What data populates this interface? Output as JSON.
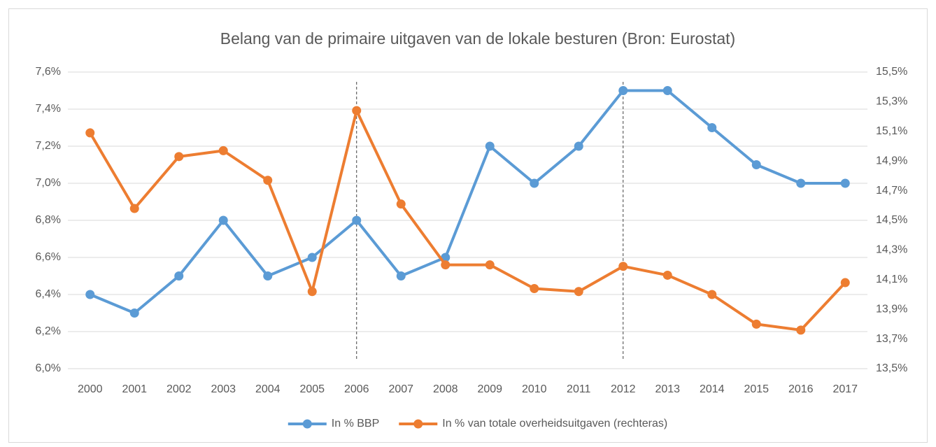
{
  "chart_data": {
    "type": "line",
    "title": "Belang van de primaire uitgaven van de lokale besturen (Bron: Eurostat)",
    "categories": [
      "2000",
      "2001",
      "2002",
      "2003",
      "2004",
      "2005",
      "2006",
      "2007",
      "2008",
      "2009",
      "2010",
      "2011",
      "2012",
      "2013",
      "2014",
      "2015",
      "2016",
      "2017"
    ],
    "series": [
      {
        "name": "In % BBP",
        "color": "#5b9bd5",
        "axis": "y",
        "values": [
          6.4,
          6.3,
          6.5,
          6.8,
          6.5,
          6.6,
          6.8,
          6.5,
          6.6,
          7.2,
          7.0,
          7.2,
          7.5,
          7.5,
          7.3,
          7.1,
          7.0,
          7.0
        ]
      },
      {
        "name": "In % van totale overheidsuitgaven (rechteras)",
        "color": "#ed7d31",
        "axis": "y2",
        "values": [
          15.09,
          14.58,
          14.93,
          14.97,
          14.77,
          14.02,
          15.24,
          14.61,
          14.2,
          14.2,
          14.04,
          14.02,
          14.19,
          14.13,
          14.0,
          13.8,
          13.76,
          14.08
        ]
      }
    ],
    "ylim": [
      6.0,
      7.6
    ],
    "yticks": [
      {
        "value": 6.0,
        "label": "6,0%"
      },
      {
        "value": 6.2,
        "label": "6,2%"
      },
      {
        "value": 6.4,
        "label": "6,4%"
      },
      {
        "value": 6.6,
        "label": "6,6%"
      },
      {
        "value": 6.8,
        "label": "6,8%"
      },
      {
        "value": 7.0,
        "label": "7,0%"
      },
      {
        "value": 7.2,
        "label": "7,2%"
      },
      {
        "value": 7.4,
        "label": "7,4%"
      },
      {
        "value": 7.6,
        "label": "7,6%"
      }
    ],
    "y2lim": [
      13.5,
      15.5
    ],
    "y2ticks": [
      {
        "value": 13.5,
        "label": "13,5%"
      },
      {
        "value": 13.7,
        "label": "13,7%"
      },
      {
        "value": 13.9,
        "label": "13,9%"
      },
      {
        "value": 14.1,
        "label": "14,1%"
      },
      {
        "value": 14.3,
        "label": "14,3%"
      },
      {
        "value": 14.5,
        "label": "14,5%"
      },
      {
        "value": 14.7,
        "label": "14,7%"
      },
      {
        "value": 14.9,
        "label": "14,9%"
      },
      {
        "value": 15.1,
        "label": "15,1%"
      },
      {
        "value": 15.3,
        "label": "15,3%"
      },
      {
        "value": 15.5,
        "label": "15,5%"
      }
    ],
    "reference_lines": [
      "2006",
      "2012"
    ],
    "grid": true,
    "legend": "bottom"
  }
}
